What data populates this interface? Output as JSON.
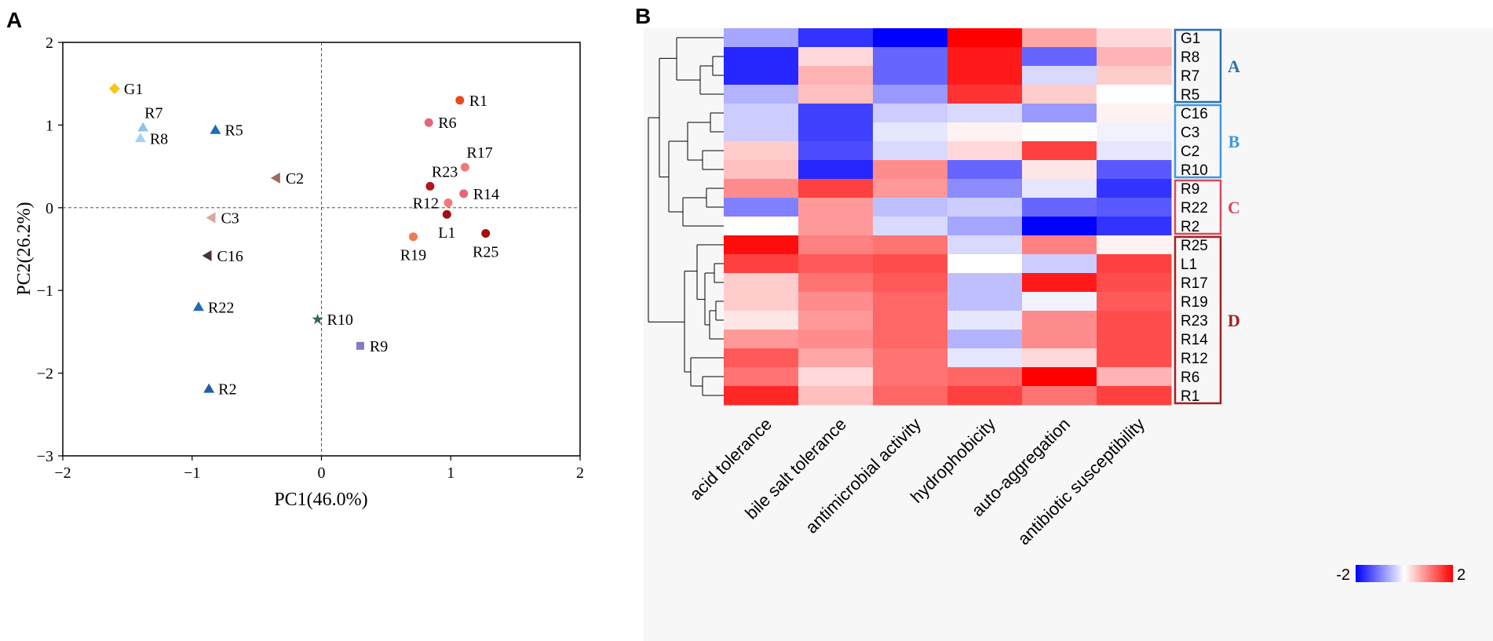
{
  "colors": {
    "heat_low": "#0000ff",
    "heat_mid": "#ffffff",
    "heat_high": "#ff0000",
    "group_A": "#2b6fb0",
    "group_B": "#3e98e0",
    "group_C": "#d9485f",
    "group_D": "#a41f1f"
  },
  "chart_data": [
    {
      "type": "scatter",
      "panel": "A",
      "xlabel": "PC1(46.0%)",
      "ylabel": "PC2(26.2%)",
      "xlim": [
        -2,
        2
      ],
      "ylim": [
        -3,
        2
      ],
      "xticks": [
        -2,
        -1,
        0,
        1,
        2
      ],
      "xtick_labels": [
        "−2",
        "−1",
        "0",
        "1",
        "2"
      ],
      "yticks": [
        -3,
        -2,
        -1,
        0,
        1,
        2
      ],
      "ytick_labels": [
        "−3",
        "−2",
        "−1",
        "0",
        "1",
        "2"
      ],
      "reference_lines": {
        "x": 0,
        "y": 0,
        "style": "dashed"
      },
      "points": [
        {
          "label": "G1",
          "x": -1.6,
          "y": 1.44,
          "marker": "diamond",
          "color": "#f5c518",
          "label_pos": "right"
        },
        {
          "label": "R7",
          "x": -1.38,
          "y": 0.97,
          "marker": "triangle",
          "color": "#8fc4e8",
          "label_pos": "above"
        },
        {
          "label": "R8",
          "x": -1.4,
          "y": 0.84,
          "marker": "triangle",
          "color": "#a9d2ee",
          "label_pos": "right"
        },
        {
          "label": "R5",
          "x": -0.82,
          "y": 0.94,
          "marker": "triangle",
          "color": "#1f6bb5",
          "label_pos": "right"
        },
        {
          "label": "C2",
          "x": -0.35,
          "y": 0.36,
          "marker": "triangle-left",
          "color": "#9c6b60",
          "label_pos": "right"
        },
        {
          "label": "C3",
          "x": -0.85,
          "y": -0.12,
          "marker": "triangle-left",
          "color": "#d9a8a0",
          "label_pos": "right"
        },
        {
          "label": "C16",
          "x": -0.88,
          "y": -0.58,
          "marker": "triangle-left",
          "color": "#4a3530",
          "label_pos": "right"
        },
        {
          "label": "R22",
          "x": -0.95,
          "y": -1.2,
          "marker": "triangle",
          "color": "#1f6bb5",
          "label_pos": "right"
        },
        {
          "label": "R2",
          "x": -0.87,
          "y": -2.19,
          "marker": "triangle",
          "color": "#1f5fa8",
          "label_pos": "right"
        },
        {
          "label": "R10",
          "x": -0.03,
          "y": -1.35,
          "marker": "star",
          "color": "#2e6b4f",
          "label_pos": "right"
        },
        {
          "label": "R9",
          "x": 0.3,
          "y": -1.67,
          "marker": "square",
          "color": "#8878c8",
          "label_pos": "right"
        },
        {
          "label": "R1",
          "x": 1.07,
          "y": 1.3,
          "marker": "circle",
          "color": "#e8491d",
          "label_pos": "right"
        },
        {
          "label": "R6",
          "x": 0.83,
          "y": 1.03,
          "marker": "circle",
          "color": "#e8647a",
          "label_pos": "right"
        },
        {
          "label": "R17",
          "x": 1.11,
          "y": 0.49,
          "marker": "circle",
          "color": "#f07a7a",
          "label_pos": "above"
        },
        {
          "label": "R23",
          "x": 0.84,
          "y": 0.26,
          "marker": "circle",
          "color": "#b3171d",
          "label_pos": "above"
        },
        {
          "label": "R14",
          "x": 1.1,
          "y": 0.17,
          "marker": "circle",
          "color": "#e8647a",
          "label_pos": "right"
        },
        {
          "label": "R12",
          "x": 0.98,
          "y": 0.06,
          "marker": "circle",
          "color": "#f07a7a",
          "label_pos": "left"
        },
        {
          "label": "L1",
          "x": 0.97,
          "y": -0.08,
          "marker": "circle",
          "color": "#a01010",
          "label_pos": "below"
        },
        {
          "label": "R19",
          "x": 0.71,
          "y": -0.35,
          "marker": "circle",
          "color": "#f07a50",
          "label_pos": "below"
        },
        {
          "label": "R25",
          "x": 1.27,
          "y": -0.31,
          "marker": "circle",
          "color": "#a01010",
          "label_pos": "below"
        }
      ]
    },
    {
      "type": "heatmap",
      "panel": "B",
      "columns": [
        "acid tolerance",
        "bile salt tolerance",
        "antimicrobial activity",
        "hydrophobicity",
        "auto-aggregation",
        "antibiotic susceptibility"
      ],
      "rows": [
        "G1",
        "R8",
        "R7",
        "R5",
        "C16",
        "C3",
        "C2",
        "R10",
        "R9",
        "R22",
        "R2",
        "R25",
        "L1",
        "R17",
        "R19",
        "R23",
        "R14",
        "R12",
        "R6",
        "R1"
      ],
      "values": [
        [
          -0.7,
          -1.6,
          -2.0,
          2.0,
          0.7,
          0.3
        ],
        [
          -1.7,
          0.3,
          -1.2,
          1.8,
          -1.2,
          0.6
        ],
        [
          -1.7,
          0.6,
          -1.2,
          1.8,
          -0.3,
          0.4
        ],
        [
          -0.6,
          0.5,
          -0.8,
          1.6,
          0.4,
          0.0
        ],
        [
          -0.4,
          -1.5,
          -0.4,
          -0.3,
          -0.8,
          0.1
        ],
        [
          -0.4,
          -1.5,
          -0.2,
          0.1,
          0.0,
          -0.1
        ],
        [
          0.4,
          -1.4,
          -0.3,
          0.3,
          1.5,
          -0.2
        ],
        [
          0.5,
          -1.7,
          0.9,
          -1.2,
          0.2,
          -1.3
        ],
        [
          0.9,
          1.5,
          0.8,
          -0.9,
          -0.2,
          -1.6
        ],
        [
          -1.0,
          0.8,
          -0.5,
          -0.4,
          -1.2,
          -1.3
        ],
        [
          0.0,
          0.8,
          -0.3,
          -0.7,
          -2.0,
          -1.6
        ],
        [
          1.9,
          1.0,
          1.1,
          -0.3,
          1.0,
          0.1
        ],
        [
          1.5,
          1.3,
          1.4,
          0.0,
          -0.4,
          1.5
        ],
        [
          0.4,
          1.1,
          1.3,
          -0.5,
          1.8,
          1.4
        ],
        [
          0.4,
          0.9,
          1.2,
          -0.5,
          -0.1,
          1.3
        ],
        [
          0.2,
          0.8,
          1.2,
          -0.2,
          0.9,
          1.4
        ],
        [
          0.8,
          0.9,
          1.2,
          -0.6,
          0.9,
          1.4
        ],
        [
          1.3,
          0.7,
          1.1,
          -0.2,
          0.3,
          1.4
        ],
        [
          1.1,
          0.3,
          1.1,
          1.2,
          2.0,
          0.6
        ],
        [
          1.7,
          0.5,
          1.2,
          1.5,
          1.1,
          1.5
        ]
      ],
      "colorbar": {
        "min_label": "-2",
        "max_label": "2",
        "min": -2,
        "max": 2
      },
      "groups": [
        {
          "name": "A",
          "first_row": 0,
          "last_row": 3,
          "color_key": "group_A"
        },
        {
          "name": "B",
          "first_row": 4,
          "last_row": 7,
          "color_key": "group_B"
        },
        {
          "name": "C",
          "first_row": 8,
          "last_row": 10,
          "color_key": "group_C"
        },
        {
          "name": "D",
          "first_row": 11,
          "last_row": 19,
          "color_key": "group_D"
        }
      ]
    }
  ],
  "panels": {
    "a_label": "A",
    "b_label": "B"
  }
}
